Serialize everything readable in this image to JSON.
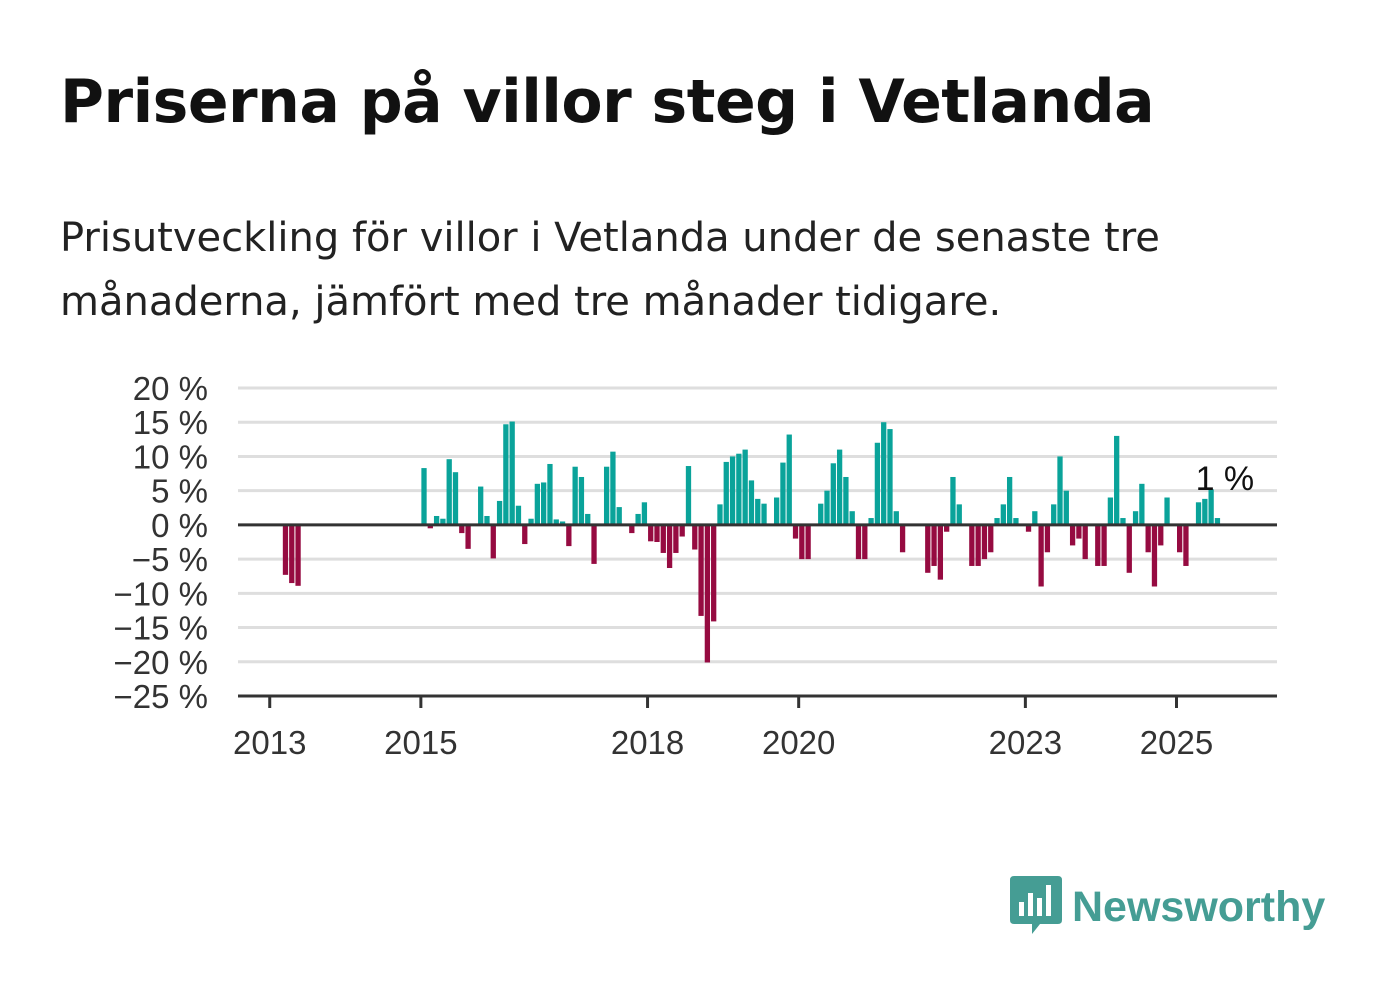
{
  "title": "Priserna på villor steg i Vetlanda",
  "subtitle": "Prisutveckling för villor i Vetlanda under de senaste tre månaderna, jämfört med tre månader tidigare.",
  "brand": {
    "name": "Newsworthy",
    "color": "#459d94",
    "icon": "newsworthy-logo-icon"
  },
  "colors": {
    "positive": "#0aa39a",
    "negative": "#960b41",
    "grid": "#dedede",
    "axis": "#333333"
  },
  "chart_data": {
    "type": "bar",
    "ylabel_unit": "%",
    "ylim": [
      -25,
      20
    ],
    "yticks": [
      20,
      15,
      10,
      5,
      0,
      -5,
      -10,
      -15,
      -20,
      -25
    ],
    "ytick_labels": [
      "20 %",
      "15 %",
      "10 %",
      "5 %",
      "0 %",
      "−5 %",
      "−10 %",
      "−15 %",
      "−20 %",
      "−25 %"
    ],
    "xlim": [
      2012.58,
      2026.33
    ],
    "xticks": [
      2013,
      2015,
      2018,
      2020,
      2023,
      2025
    ],
    "xtick_labels": [
      "2013",
      "2015",
      "2018",
      "2020",
      "2023",
      "2025"
    ],
    "grid": true,
    "annotation": {
      "text": "1 %",
      "x": "2025-09",
      "value": 1
    },
    "bars": [
      {
        "x": "2013-03",
        "value": -7.3
      },
      {
        "x": "2013-04",
        "value": -8.5
      },
      {
        "x": "2013-05",
        "value": -8.9
      },
      {
        "x": "2015-01",
        "value": 8.3
      },
      {
        "x": "2015-02",
        "value": -0.5
      },
      {
        "x": "2015-03",
        "value": 1.3
      },
      {
        "x": "2015-04",
        "value": 0.9
      },
      {
        "x": "2015-05",
        "value": 9.6
      },
      {
        "x": "2015-06",
        "value": 7.7
      },
      {
        "x": "2015-07",
        "value": -1.2
      },
      {
        "x": "2015-08",
        "value": -3.5
      },
      {
        "x": "2015-09",
        "value": 0.2
      },
      {
        "x": "2015-10",
        "value": 5.6
      },
      {
        "x": "2015-11",
        "value": 1.3
      },
      {
        "x": "2015-12",
        "value": -4.9
      },
      {
        "x": "2016-01",
        "value": 3.5
      },
      {
        "x": "2016-02",
        "value": 14.7
      },
      {
        "x": "2016-03",
        "value": 15.1
      },
      {
        "x": "2016-04",
        "value": 2.8
      },
      {
        "x": "2016-05",
        "value": -2.8
      },
      {
        "x": "2016-06",
        "value": 0.9
      },
      {
        "x": "2016-07",
        "value": 6.0
      },
      {
        "x": "2016-08",
        "value": 6.2
      },
      {
        "x": "2016-09",
        "value": 8.9
      },
      {
        "x": "2016-10",
        "value": 0.8
      },
      {
        "x": "2016-11",
        "value": 0.5
      },
      {
        "x": "2016-12",
        "value": -3.1
      },
      {
        "x": "2017-01",
        "value": 8.5
      },
      {
        "x": "2017-02",
        "value": 7.0
      },
      {
        "x": "2017-03",
        "value": 1.6
      },
      {
        "x": "2017-04",
        "value": -5.7
      },
      {
        "x": "2017-05",
        "value": 0.1
      },
      {
        "x": "2017-06",
        "value": 8.5
      },
      {
        "x": "2017-07",
        "value": 10.7
      },
      {
        "x": "2017-08",
        "value": 2.6
      },
      {
        "x": "2017-09",
        "value": 0.2
      },
      {
        "x": "2017-10",
        "value": -1.2
      },
      {
        "x": "2017-11",
        "value": 1.6
      },
      {
        "x": "2017-12",
        "value": 3.3
      },
      {
        "x": "2018-01",
        "value": -2.4
      },
      {
        "x": "2018-02",
        "value": -2.5
      },
      {
        "x": "2018-03",
        "value": -4.1
      },
      {
        "x": "2018-04",
        "value": -6.3
      },
      {
        "x": "2018-05",
        "value": -4.1
      },
      {
        "x": "2018-06",
        "value": -1.7
      },
      {
        "x": "2018-07",
        "value": 8.6
      },
      {
        "x": "2018-08",
        "value": -3.6
      },
      {
        "x": "2018-09",
        "value": -13.3
      },
      {
        "x": "2018-10",
        "value": -20.1
      },
      {
        "x": "2018-11",
        "value": -14.1
      },
      {
        "x": "2018-12",
        "value": 3.0
      },
      {
        "x": "2019-01",
        "value": 9.2
      },
      {
        "x": "2019-02",
        "value": 10.0
      },
      {
        "x": "2019-03",
        "value": 10.4
      },
      {
        "x": "2019-04",
        "value": 11.0
      },
      {
        "x": "2019-05",
        "value": 6.5
      },
      {
        "x": "2019-06",
        "value": 3.8
      },
      {
        "x": "2019-07",
        "value": 3.1
      },
      {
        "x": "2019-08",
        "value": 0.0
      },
      {
        "x": "2019-09",
        "value": 4.0
      },
      {
        "x": "2019-10",
        "value": 9.1
      },
      {
        "x": "2019-11",
        "value": 13.2
      },
      {
        "x": "2019-12",
        "value": -2.0
      },
      {
        "x": "2020-01",
        "value": -5.0
      },
      {
        "x": "2020-02",
        "value": -5.0
      },
      {
        "x": "2020-03",
        "value": 0.0
      },
      {
        "x": "2020-04",
        "value": 3.1
      },
      {
        "x": "2020-05",
        "value": 5.0
      },
      {
        "x": "2020-06",
        "value": 9.0
      },
      {
        "x": "2020-07",
        "value": 11.0
      },
      {
        "x": "2020-08",
        "value": 7.0
      },
      {
        "x": "2020-09",
        "value": 2.0
      },
      {
        "x": "2020-10",
        "value": -5.0
      },
      {
        "x": "2020-11",
        "value": -5.0
      },
      {
        "x": "2020-12",
        "value": 1.0
      },
      {
        "x": "2021-01",
        "value": 12.0
      },
      {
        "x": "2021-02",
        "value": 15.0
      },
      {
        "x": "2021-03",
        "value": 14.0
      },
      {
        "x": "2021-04",
        "value": 2.0
      },
      {
        "x": "2021-05",
        "value": -4.0
      },
      {
        "x": "2021-09",
        "value": -7.0
      },
      {
        "x": "2021-10",
        "value": -6.0
      },
      {
        "x": "2021-11",
        "value": -8.0
      },
      {
        "x": "2021-12",
        "value": -1.0
      },
      {
        "x": "2022-01",
        "value": 7.0
      },
      {
        "x": "2022-02",
        "value": 3.0
      },
      {
        "x": "2022-04",
        "value": -6.0
      },
      {
        "x": "2022-05",
        "value": -6.0
      },
      {
        "x": "2022-06",
        "value": -5.0
      },
      {
        "x": "2022-07",
        "value": -4.0
      },
      {
        "x": "2022-08",
        "value": 1.0
      },
      {
        "x": "2022-09",
        "value": 3.0
      },
      {
        "x": "2022-10",
        "value": 7.0
      },
      {
        "x": "2022-11",
        "value": 1.0
      },
      {
        "x": "2023-01",
        "value": -1.0
      },
      {
        "x": "2023-02",
        "value": 2.0
      },
      {
        "x": "2023-03",
        "value": -9.0
      },
      {
        "x": "2023-04",
        "value": -4.0
      },
      {
        "x": "2023-05",
        "value": 3.0
      },
      {
        "x": "2023-06",
        "value": 10.0
      },
      {
        "x": "2023-07",
        "value": 5.0
      },
      {
        "x": "2023-08",
        "value": -3.0
      },
      {
        "x": "2023-09",
        "value": -2.0
      },
      {
        "x": "2023-10",
        "value": -5.0
      },
      {
        "x": "2023-12",
        "value": -6.0
      },
      {
        "x": "2024-01",
        "value": -6.0
      },
      {
        "x": "2024-02",
        "value": 4.0
      },
      {
        "x": "2024-03",
        "value": 13.0
      },
      {
        "x": "2024-04",
        "value": 1.0
      },
      {
        "x": "2024-05",
        "value": -7.0
      },
      {
        "x": "2024-06",
        "value": 2.0
      },
      {
        "x": "2024-07",
        "value": 6.0
      },
      {
        "x": "2024-08",
        "value": -4.0
      },
      {
        "x": "2024-09",
        "value": -9.0
      },
      {
        "x": "2024-10",
        "value": -3.0
      },
      {
        "x": "2024-11",
        "value": 4.0
      },
      {
        "x": "2025-01",
        "value": -4.0
      },
      {
        "x": "2025-02",
        "value": -6.0
      },
      {
        "x": "2025-04",
        "value": 3.3
      },
      {
        "x": "2025-05",
        "value": 3.8
      },
      {
        "x": "2025-06",
        "value": 5.2
      },
      {
        "x": "2025-07",
        "value": 1.0
      }
    ]
  }
}
